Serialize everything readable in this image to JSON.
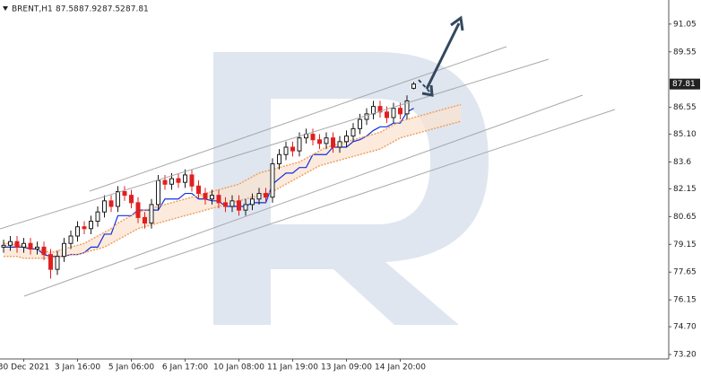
{
  "chart_data": {
    "type": "candlestick",
    "symbol": "BRENT,H1",
    "ohlc": [
      87.58,
      87.92,
      87.52,
      87.81
    ],
    "categories": [
      null,
      null,
      null,
      "30 Dec 2021",
      null,
      null,
      null,
      null,
      null,
      null,
      null,
      "3 Jan 16:00",
      null,
      null,
      null,
      null,
      null,
      null,
      null,
      "5 Jan 06:00",
      null,
      null,
      null,
      null,
      null,
      null,
      null,
      "6 Jan 17:00",
      null,
      null,
      null,
      null,
      null,
      null,
      null,
      "10 Jan 08:00",
      null,
      null,
      null,
      null,
      null,
      null,
      null,
      "11 Jan 19:00",
      null,
      null,
      null,
      null,
      null,
      null,
      null,
      "13 Jan 09:00",
      null,
      null,
      null,
      null,
      null,
      null,
      null,
      "14 Jan 20:00",
      null,
      null,
      null,
      null,
      null,
      null,
      null,
      null,
      null
    ],
    "open": [
      79.0,
      79.1,
      79.3,
      79.0,
      79.2,
      78.9,
      79.0,
      78.6,
      77.8,
      78.5,
      79.2,
      79.6,
      80.1,
      80.0,
      80.4,
      80.9,
      81.5,
      81.2,
      82.0,
      81.8,
      81.4,
      80.6,
      80.3,
      81.3,
      82.6,
      82.4,
      82.7,
      82.5,
      82.9,
      82.3,
      81.9,
      81.6,
      81.8,
      81.4,
      81.2,
      81.5,
      81.0,
      81.3,
      81.6,
      81.9,
      81.7,
      83.5,
      84.0,
      84.4,
      84.2,
      84.9,
      85.1,
      84.8,
      84.6,
      84.9,
      84.4,
      84.7,
      85.0,
      85.4,
      85.9,
      86.2,
      86.6,
      86.3,
      86.0,
      86.5,
      86.2,
      87.58,
      null,
      null,
      null,
      null,
      null,
      null,
      null
    ],
    "high": [
      79.4,
      79.6,
      79.6,
      79.5,
      79.5,
      79.3,
      79.3,
      78.9,
      78.8,
      79.5,
      79.9,
      80.4,
      80.4,
      80.7,
      81.2,
      81.8,
      81.8,
      82.3,
      82.3,
      82.1,
      81.7,
      80.9,
      81.6,
      82.9,
      82.9,
      83.0,
      83.0,
      83.2,
      83.2,
      82.6,
      82.2,
      82.1,
      82.1,
      81.7,
      81.8,
      81.8,
      81.6,
      81.9,
      82.2,
      82.2,
      83.8,
      84.3,
      84.7,
      84.7,
      85.2,
      85.4,
      85.4,
      85.1,
      85.2,
      85.2,
      85.0,
      85.3,
      85.7,
      86.2,
      86.5,
      86.9,
      86.9,
      86.6,
      86.8,
      86.8,
      87.2,
      87.92,
      null,
      null,
      null,
      null,
      null,
      null,
      null
    ],
    "low": [
      78.7,
      78.8,
      78.7,
      78.7,
      78.6,
      78.6,
      78.3,
      77.3,
      77.5,
      78.2,
      78.9,
      79.3,
      79.7,
      79.7,
      80.1,
      80.6,
      80.9,
      80.9,
      81.5,
      81.1,
      80.3,
      80.0,
      80.0,
      81.0,
      82.1,
      82.1,
      82.2,
      82.2,
      82.0,
      81.6,
      81.3,
      81.3,
      81.1,
      80.9,
      80.9,
      80.7,
      80.7,
      81.0,
      81.3,
      81.4,
      81.4,
      83.2,
      83.7,
      83.9,
      83.9,
      84.6,
      84.5,
      84.3,
      84.3,
      84.1,
      84.1,
      84.4,
      84.7,
      85.1,
      85.6,
      85.9,
      86.0,
      85.7,
      85.7,
      85.9,
      85.9,
      87.52,
      null,
      null,
      null,
      null,
      null,
      null,
      null
    ],
    "close": [
      79.1,
      79.3,
      79.0,
      79.2,
      78.9,
      79.0,
      78.6,
      77.8,
      78.5,
      79.2,
      79.6,
      80.1,
      80.0,
      80.4,
      80.9,
      81.5,
      81.2,
      82.0,
      81.8,
      81.4,
      80.6,
      80.3,
      81.3,
      82.6,
      82.4,
      82.7,
      82.5,
      82.9,
      82.3,
      81.9,
      81.6,
      81.8,
      81.4,
      81.2,
      81.5,
      81.0,
      81.3,
      81.6,
      81.9,
      81.7,
      83.5,
      84.0,
      84.4,
      84.2,
      84.9,
      85.1,
      84.8,
      84.6,
      84.9,
      84.4,
      84.7,
      85.0,
      85.4,
      85.9,
      86.2,
      86.6,
      86.3,
      86.0,
      86.5,
      86.2,
      86.9,
      87.81,
      null,
      null,
      null,
      null,
      null,
      null,
      null
    ],
    "up_color": "#1a1a1a",
    "down_color": "#e02020",
    "lines": [
      {
        "color": "#1030e0",
        "values": [
          79.0,
          79.0,
          79.0,
          79.0,
          78.9,
          78.9,
          78.6,
          78.5,
          78.5,
          78.5,
          78.6,
          78.6,
          78.7,
          79.0,
          79.0,
          79.7,
          79.7,
          80.7,
          80.7,
          80.7,
          81.0,
          81.0,
          81.0,
          81.0,
          81.6,
          81.6,
          81.6,
          81.9,
          81.9,
          81.6,
          81.6,
          81.5,
          81.5,
          81.2,
          81.2,
          81.2,
          81.2,
          81.4,
          81.4,
          81.4,
          82.4,
          82.7,
          83.0,
          83.0,
          83.3,
          83.3,
          84.0,
          84.0,
          84.0,
          84.4,
          84.4,
          84.4,
          84.7,
          84.8,
          85.0,
          85.3,
          85.5,
          85.5,
          85.7,
          85.7,
          86.3,
          86.5,
          null,
          null,
          null,
          null,
          null,
          null,
          null
        ]
      },
      {
        "color": "#f0a060",
        "values": [
          79.2,
          79.2,
          79.1,
          79.1,
          79.0,
          78.9,
          78.8,
          78.7,
          78.8,
          78.9,
          79.0,
          79.1,
          79.2,
          79.4,
          79.6,
          79.8,
          80.0,
          80.3,
          80.5,
          80.7,
          80.9,
          81.0,
          81.1,
          81.2,
          81.3,
          81.4,
          81.5,
          81.6,
          81.7,
          81.8,
          81.9,
          82.0,
          82.1,
          82.2,
          82.3,
          82.4,
          82.6,
          82.8,
          83.0,
          83.1,
          83.2,
          83.3,
          83.4,
          83.5,
          83.6,
          83.8,
          84.0,
          84.2,
          84.4,
          84.5,
          84.6,
          84.7,
          84.8,
          84.9,
          85.0,
          85.1,
          85.2,
          85.4,
          85.6,
          85.8,
          85.9,
          86.0,
          86.1,
          86.2,
          86.3,
          86.4,
          86.5,
          86.6,
          86.7
        ]
      },
      {
        "color": "#f0a060",
        "values": [
          78.5,
          78.5,
          78.5,
          78.4,
          78.4,
          78.4,
          78.4,
          78.4,
          78.5,
          78.5,
          78.6,
          78.6,
          78.7,
          78.8,
          78.9,
          79.0,
          79.2,
          79.4,
          79.6,
          79.8,
          80.0,
          80.1,
          80.2,
          80.3,
          80.4,
          80.5,
          80.6,
          80.7,
          80.8,
          80.9,
          81.0,
          81.1,
          81.2,
          81.3,
          81.4,
          81.5,
          81.6,
          81.7,
          81.8,
          81.9,
          82.0,
          82.2,
          82.4,
          82.6,
          82.8,
          83.0,
          83.2,
          83.4,
          83.5,
          83.6,
          83.7,
          83.8,
          83.9,
          84.0,
          84.1,
          84.2,
          84.3,
          84.5,
          84.7,
          84.9,
          85.0,
          85.1,
          85.2,
          85.3,
          85.4,
          85.5,
          85.6,
          85.7,
          85.8
        ]
      }
    ],
    "ylim": [
      72.96,
      92.35
    ],
    "yticks": [
      {
        "value": 73.2,
        "label": "73.20"
      },
      {
        "value": 74.7,
        "label": "74.70"
      },
      76.15,
      77.65,
      79.15,
      80.65,
      82.15,
      83.6,
      {
        "value": 85.1,
        "label": "85.10"
      },
      86.55,
      89.55,
      91.05
    ]
  }
}
